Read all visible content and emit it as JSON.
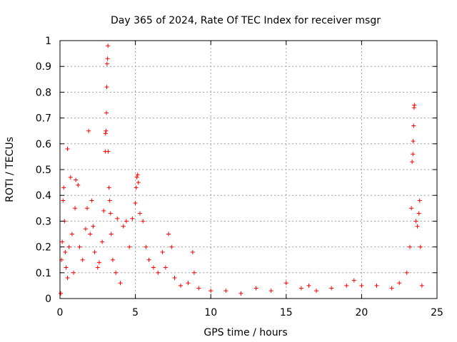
{
  "chart_data": {
    "type": "scatter",
    "title": "Day 365 of 2024, Rate Of TEC Index for receiver msgr",
    "xlabel": "GPS time / hours",
    "ylabel": "ROTI / TECUs",
    "xlim": [
      0,
      25
    ],
    "ylim": [
      0,
      1
    ],
    "xticks": [
      0,
      5,
      10,
      15,
      20,
      25
    ],
    "xtick_labels": [
      "0",
      "5",
      "10",
      "15",
      "20",
      "25"
    ],
    "yticks": [
      0,
      0.1,
      0.2,
      0.3,
      0.4,
      0.5,
      0.6,
      0.7,
      0.8,
      0.9,
      1
    ],
    "ytick_labels": [
      "0",
      "0.1",
      "0.2",
      "0.3",
      "0.4",
      "0.5",
      "0.6",
      "0.7",
      "0.8",
      "0.9",
      "1"
    ],
    "grid": true,
    "marker": "+",
    "color": "#ff0000",
    "series": [
      {
        "name": "ROTI",
        "points": [
          [
            0.05,
            0.02
          ],
          [
            0.1,
            0.15
          ],
          [
            0.15,
            0.22
          ],
          [
            0.2,
            0.38
          ],
          [
            0.25,
            0.43
          ],
          [
            0.3,
            0.3
          ],
          [
            0.35,
            0.18
          ],
          [
            0.4,
            0.12
          ],
          [
            0.5,
            0.08
          ],
          [
            0.6,
            0.2
          ],
          [
            0.7,
            0.47
          ],
          [
            0.5,
            0.58
          ],
          [
            0.8,
            0.25
          ],
          [
            0.9,
            0.1
          ],
          [
            1.0,
            0.35
          ],
          [
            1.05,
            0.46
          ],
          [
            1.2,
            0.44
          ],
          [
            1.3,
            0.2
          ],
          [
            1.5,
            0.15
          ],
          [
            1.7,
            0.27
          ],
          [
            1.8,
            0.35
          ],
          [
            1.9,
            0.65
          ],
          [
            2.0,
            0.25
          ],
          [
            2.1,
            0.38
          ],
          [
            2.2,
            0.28
          ],
          [
            2.3,
            0.18
          ],
          [
            2.5,
            0.12
          ],
          [
            2.6,
            0.14
          ],
          [
            2.8,
            0.22
          ],
          [
            2.9,
            0.34
          ],
          [
            3.0,
            0.57
          ],
          [
            3.02,
            0.64
          ],
          [
            3.05,
            0.65
          ],
          [
            3.08,
            0.72
          ],
          [
            3.1,
            0.82
          ],
          [
            3.12,
            0.91
          ],
          [
            3.15,
            0.93
          ],
          [
            3.18,
            0.98
          ],
          [
            3.2,
            0.57
          ],
          [
            3.25,
            0.43
          ],
          [
            3.3,
            0.38
          ],
          [
            3.35,
            0.33
          ],
          [
            3.4,
            0.25
          ],
          [
            3.5,
            0.15
          ],
          [
            3.7,
            0.1
          ],
          [
            3.8,
            0.31
          ],
          [
            4.0,
            0.06
          ],
          [
            4.2,
            0.28
          ],
          [
            4.4,
            0.3
          ],
          [
            4.6,
            0.2
          ],
          [
            4.8,
            0.31
          ],
          [
            5.0,
            0.37
          ],
          [
            5.05,
            0.43
          ],
          [
            5.1,
            0.47
          ],
          [
            5.15,
            0.48
          ],
          [
            5.2,
            0.45
          ],
          [
            5.3,
            0.33
          ],
          [
            5.5,
            0.3
          ],
          [
            5.7,
            0.2
          ],
          [
            5.9,
            0.15
          ],
          [
            6.2,
            0.12
          ],
          [
            6.5,
            0.1
          ],
          [
            6.8,
            0.18
          ],
          [
            7.0,
            0.12
          ],
          [
            7.2,
            0.25
          ],
          [
            7.4,
            0.2
          ],
          [
            7.6,
            0.08
          ],
          [
            8.0,
            0.05
          ],
          [
            8.5,
            0.06
          ],
          [
            8.8,
            0.18
          ],
          [
            8.9,
            0.1
          ],
          [
            9.2,
            0.04
          ],
          [
            10.0,
            0.03
          ],
          [
            11.0,
            0.03
          ],
          [
            12.0,
            0.02
          ],
          [
            13.0,
            0.04
          ],
          [
            14.0,
            0.03
          ],
          [
            15.0,
            0.06
          ],
          [
            16.0,
            0.04
          ],
          [
            16.5,
            0.05
          ],
          [
            17.0,
            0.03
          ],
          [
            18.0,
            0.04
          ],
          [
            19.0,
            0.05
          ],
          [
            19.5,
            0.07
          ],
          [
            20.0,
            0.05
          ],
          [
            21.0,
            0.05
          ],
          [
            22.0,
            0.04
          ],
          [
            22.5,
            0.06
          ],
          [
            23.0,
            0.1
          ],
          [
            23.2,
            0.2
          ],
          [
            23.3,
            0.35
          ],
          [
            23.35,
            0.53
          ],
          [
            23.4,
            0.56
          ],
          [
            23.42,
            0.61
          ],
          [
            23.45,
            0.67
          ],
          [
            23.48,
            0.74
          ],
          [
            23.5,
            0.75
          ],
          [
            23.6,
            0.3
          ],
          [
            23.7,
            0.28
          ],
          [
            23.8,
            0.33
          ],
          [
            23.85,
            0.38
          ],
          [
            23.9,
            0.2
          ],
          [
            24.0,
            0.05
          ]
        ]
      }
    ]
  }
}
